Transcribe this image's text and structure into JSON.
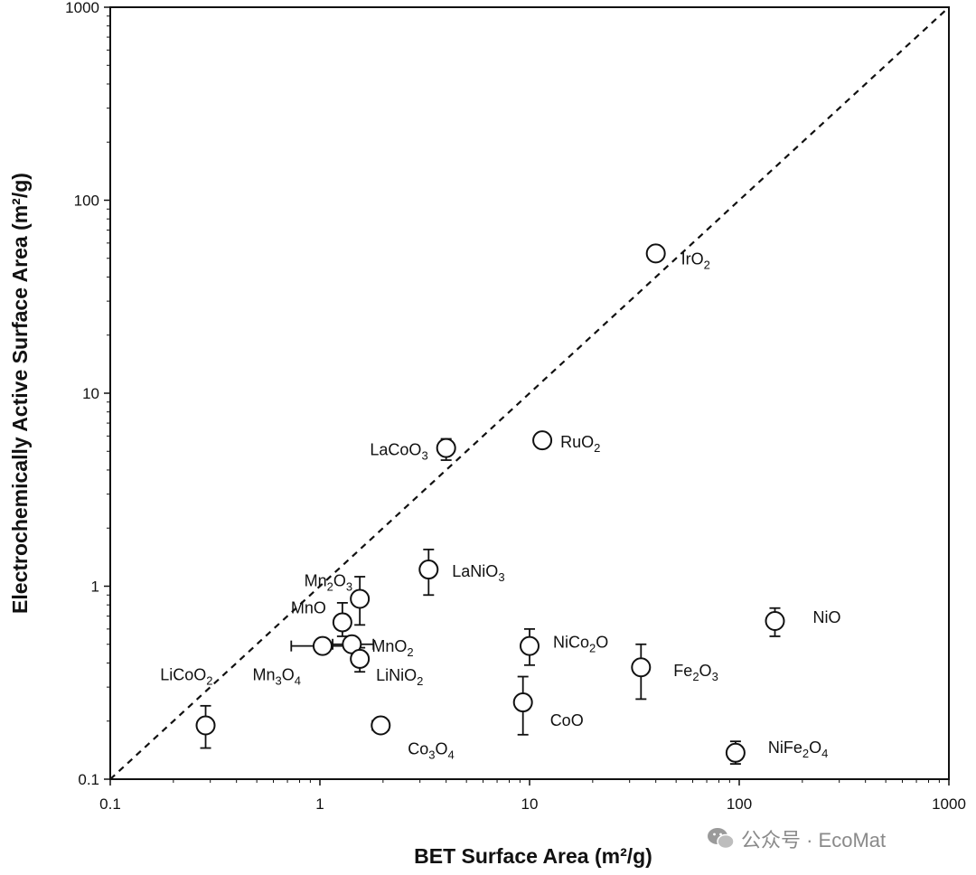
{
  "chart_data": {
    "type": "scatter",
    "title": "",
    "xlabel": "BET Surface Area (m²/g)",
    "ylabel": "Electrochemically Active Surface Area (m²/g)",
    "xscale": "log",
    "yscale": "log",
    "xlim": [
      0.1,
      1000
    ],
    "ylim": [
      0.1,
      1000
    ],
    "x_ticks": [
      "0.1",
      "1",
      "10",
      "100",
      "1000"
    ],
    "y_ticks": [
      "0.1",
      "1",
      "10",
      "100",
      "1000"
    ],
    "grid": false,
    "reference_line": "y = x (dashed)",
    "marker": "open circle",
    "points": [
      {
        "label": "IrO",
        "sub": "2",
        "x": 40,
        "y": 53
      },
      {
        "label": "LaCoO",
        "sub": "3",
        "x": 4.0,
        "y": 5.2,
        "err_low": 4.5,
        "err_high": 5.8
      },
      {
        "label": "RuO",
        "sub": "2",
        "x": 11.5,
        "y": 5.7
      },
      {
        "label": "LaNiO",
        "sub": "3",
        "x": 3.3,
        "y": 1.22,
        "err_low": 0.9,
        "err_high": 1.55
      },
      {
        "label": "Mn",
        "sub": "2",
        "label2": "O",
        "sub2": "3",
        "x": 1.55,
        "y": 0.86,
        "err_low": 0.63,
        "err_high": 1.12
      },
      {
        "label": "MnO",
        "x": 1.28,
        "y": 0.65,
        "err_low": 0.55,
        "err_high": 0.82
      },
      {
        "label": "MnO",
        "sub": "2",
        "x": 1.42,
        "y": 0.5,
        "xerr_low": 1.15,
        "xerr_high": 1.8
      },
      {
        "label": "Mn",
        "sub": "3",
        "label2": "O",
        "sub2": "4",
        "x": 1.03,
        "y": 0.49,
        "xerr_low": 0.73,
        "xerr_high": 1.35
      },
      {
        "label": "LiNiO",
        "sub": "2",
        "x": 1.55,
        "y": 0.42,
        "err_low": 0.36,
        "err_high": 0.48
      },
      {
        "label": "LiCoO",
        "sub": "2",
        "x": 0.285,
        "y": 0.19,
        "err_low": 0.145,
        "err_high": 0.24
      },
      {
        "label": "Co",
        "sub": "3",
        "label2": "O",
        "sub2": "4",
        "x": 1.95,
        "y": 0.19,
        "xerr_low": 1.78,
        "xerr_high": 2.13
      },
      {
        "label": "NiCo",
        "sub": "2",
        "label2": "O",
        "x": 10,
        "y": 0.49,
        "err_low": 0.39,
        "err_high": 0.6
      },
      {
        "label": "CoO",
        "x": 9.3,
        "y": 0.25,
        "err_low": 0.17,
        "err_high": 0.34
      },
      {
        "label": "Fe",
        "sub": "2",
        "label2": "O",
        "sub2": "3",
        "x": 34,
        "y": 0.38,
        "err_low": 0.26,
        "err_high": 0.5
      },
      {
        "label": "NiO",
        "x": 148,
        "y": 0.66,
        "err_low": 0.55,
        "err_high": 0.77
      },
      {
        "label": "NiFe",
        "sub": "2",
        "label2": "O",
        "sub2": "4",
        "x": 96,
        "y": 0.137,
        "err_low": 0.12,
        "err_high": 0.157
      }
    ]
  },
  "watermark": {
    "text": "公众号 · EcoMat",
    "icon": "wechat-icon"
  }
}
